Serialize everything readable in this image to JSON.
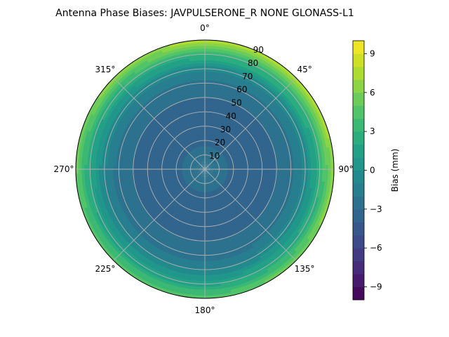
{
  "chart_data": {
    "type": "heatmap",
    "projection": "polar",
    "title": "Antenna Phase Biases: JAVPULSERONE_R  NONE GLONASS-L1",
    "azimuth": {
      "direction": "clockwise",
      "zero_location": "top",
      "tick_labels": [
        "0°",
        "45°",
        "90°",
        "135°",
        "180°",
        "225°",
        "270°",
        "315°"
      ],
      "tick_values": [
        0,
        45,
        90,
        135,
        180,
        225,
        270,
        315
      ]
    },
    "radial": {
      "quantity": "zenith angle (deg)",
      "range": [
        0,
        90
      ],
      "tick_values": [
        10,
        20,
        30,
        40,
        50,
        60,
        70,
        80,
        90
      ],
      "tick_labels": [
        "10",
        "20",
        "30",
        "40",
        "50",
        "60",
        "70",
        "80",
        "90"
      ],
      "label_azimuth_deg": 22.5
    },
    "grid": true,
    "colorbar": {
      "label": "Bias (mm)",
      "colormap": "viridis",
      "range": [
        -10,
        10
      ],
      "levels": 20,
      "tick_values": [
        -9,
        -6,
        -3,
        0,
        3,
        6,
        9
      ],
      "tick_labels": [
        "−9",
        "−6",
        "−3",
        "0",
        "3",
        "6",
        "9"
      ],
      "placement": "right"
    },
    "bias_profile_by_zenith": [
      {
        "zenith": 0,
        "bias": -2.2
      },
      {
        "zenith": 20,
        "bias": -3.2
      },
      {
        "zenith": 40,
        "bias": -3.6
      },
      {
        "zenith": 60,
        "bias": -2.5
      },
      {
        "zenith": 70,
        "bias": -1.0
      },
      {
        "zenith": 80,
        "bias": 1.5
      },
      {
        "zenith": 90,
        "bias": 4.5
      }
    ],
    "azimuthal_variation": {
      "north_east_extra_mm": 3.5,
      "center_azimuth_deg": 30
    }
  }
}
